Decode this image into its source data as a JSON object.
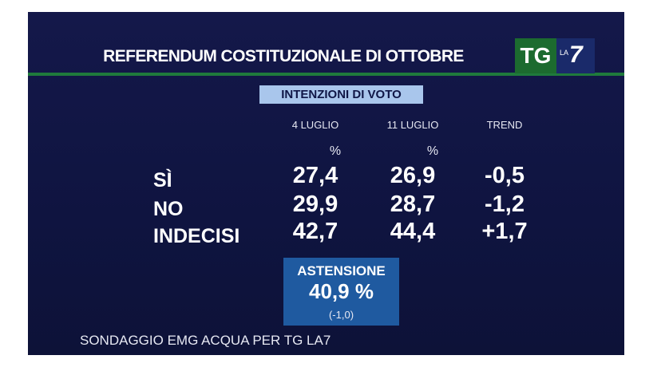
{
  "header": {
    "title": "REFERENDUM COSTITUZIONALE DI OTTOBRE",
    "logo": {
      "tg": "TG",
      "la": "LA",
      "seven": "7"
    }
  },
  "subtitle": "INTENZIONI DI VOTO",
  "table": {
    "columns": [
      "4 LUGLIO",
      "11 LUGLIO",
      "TREND"
    ],
    "units": [
      "%",
      "%"
    ],
    "rows": [
      [
        "SÌ",
        "27,4",
        "26,9",
        "-0,5"
      ],
      [
        "NO",
        "29,9",
        "28,7",
        "-1,2"
      ],
      [
        "INDECISI",
        "42,7",
        "44,4",
        "+1,7"
      ]
    ]
  },
  "abstention": {
    "label": "ASTENSIONE",
    "value": "40,9 %",
    "change": "(-1,0)"
  },
  "footer": "SONDAGGIO EMG ACQUA PER TG LA7"
}
